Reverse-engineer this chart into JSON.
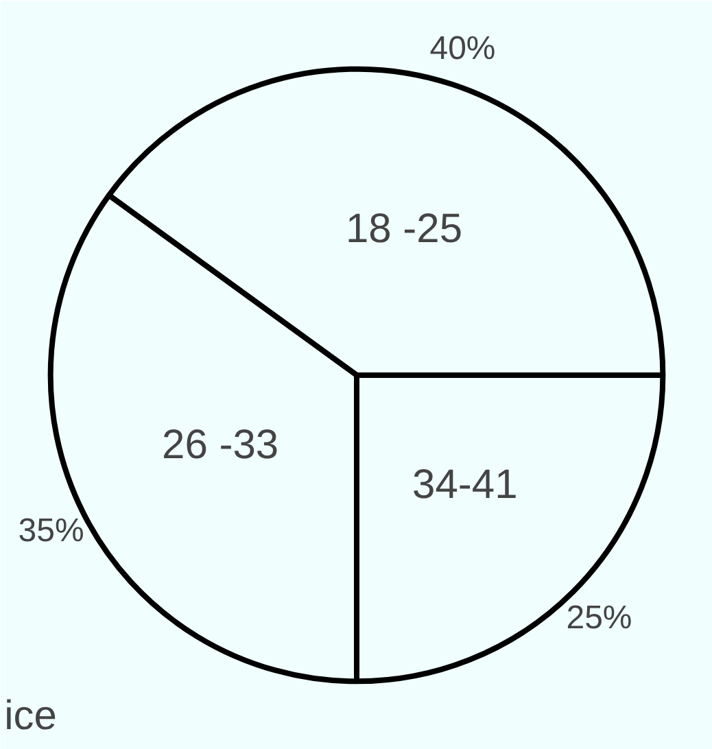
{
  "chart_data": {
    "type": "pie",
    "categories": [
      "18 -25",
      "26 -33",
      "34-41"
    ],
    "values": [
      40,
      35,
      25
    ],
    "colors": [
      "#f0fffd",
      "#f0fffd",
      "#f0fffd"
    ],
    "value_labels": [
      "40%",
      "35%",
      "25%"
    ],
    "annotations": [
      "ice"
    ]
  }
}
